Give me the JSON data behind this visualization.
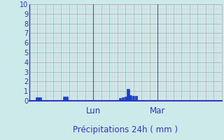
{
  "xlabel": "Précipitations 24h ( mm )",
  "ylim": [
    0,
    10
  ],
  "yticks": [
    0,
    1,
    2,
    3,
    4,
    5,
    6,
    7,
    8,
    9,
    10
  ],
  "background_color": "#cceaea",
  "bar_color": "#1c3fcc",
  "bar_edge_color": "#1030bb",
  "grid_major_color": "#b8a8a8",
  "grid_minor_color": "#d8cccc",
  "axis_color": "#3333cc",
  "text_color": "#3333bb",
  "vline_color": "#555577",
  "xlabel_fontsize": 8.5,
  "tick_fontsize": 7,
  "day_label_fontsize": 8.5,
  "total_hours": 72,
  "day_labels": [
    {
      "label": "Lun",
      "hour": 24
    },
    {
      "label": "Mar",
      "hour": 48
    }
  ],
  "bars": [
    {
      "hour": 3,
      "value": 0.35
    },
    {
      "hour": 4,
      "value": 0.35
    },
    {
      "hour": 13,
      "value": 0.4
    },
    {
      "hour": 14,
      "value": 0.4
    },
    {
      "hour": 34,
      "value": 0.3
    },
    {
      "hour": 35,
      "value": 0.35
    },
    {
      "hour": 36,
      "value": 0.4
    },
    {
      "hour": 37,
      "value": 1.2
    },
    {
      "hour": 38,
      "value": 0.55
    },
    {
      "hour": 39,
      "value": 0.5
    },
    {
      "hour": 40,
      "value": 0.5
    }
  ]
}
